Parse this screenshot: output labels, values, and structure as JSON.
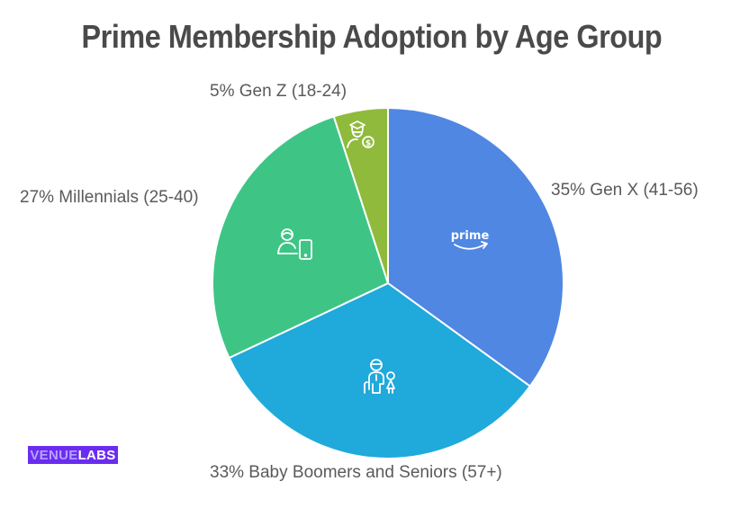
{
  "title": "Prime Membership Adoption by Age Group",
  "chart_data": {
    "type": "pie",
    "title": "Prime Membership Adoption by Age Group",
    "start_angle_deg": 0,
    "direction": "clockwise from 12 o'clock",
    "slices": [
      {
        "label": "Gen X (41-56)",
        "value": 35,
        "display": "35% Gen X (41-56)",
        "color": "#4f87e3",
        "icon": "prime-logo-icon"
      },
      {
        "label": "Baby Boomers and Seniors (57+)",
        "value": 33,
        "display": "33% Baby Boomers and Seniors (57+)",
        "color": "#20a9db",
        "icon": "family-senior-icon"
      },
      {
        "label": "Millennials (25-40)",
        "value": 27,
        "display": "27% Millennials (25-40)",
        "color": "#3ec585",
        "icon": "person-phone-icon"
      },
      {
        "label": "Gen Z (18-24)",
        "value": 5,
        "display": "5% Gen Z (18-24)",
        "color": "#8fba3b",
        "icon": "graduate-money-icon"
      }
    ]
  },
  "brand": {
    "part1": "VENUE",
    "part2": "LABS",
    "bg": "#6a2cf0"
  }
}
